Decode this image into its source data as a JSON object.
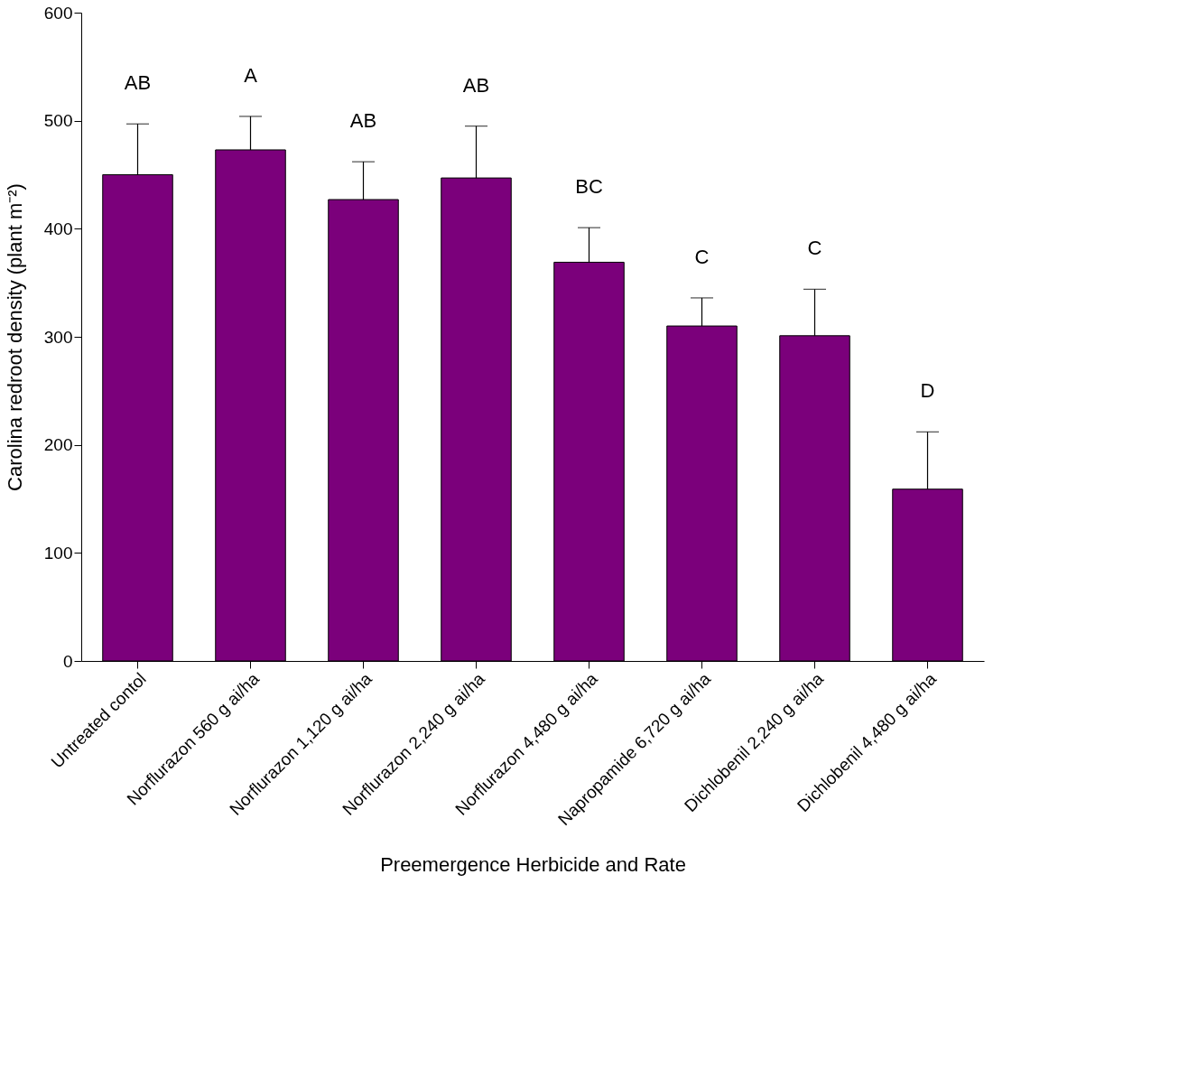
{
  "chart_data": {
    "type": "bar",
    "xlabel": "Preemergence Herbicide and Rate",
    "ylabel": "Carolina redroot density (plant m⁻²)",
    "categories": [
      "Untreated contol",
      "Norflurazon 560 g ai/ha",
      "Norflurazon 1,120 g ai/ha",
      "Norflurazon 2,240 g ai/ha",
      "Norflurazon 4,480 g ai/ha",
      "Napropamide 6,720 g ai/ha",
      "Dichlobenil 2,240 g ai/ha",
      "Dichlobenil 4,480 g ai/ha"
    ],
    "values": [
      450,
      473,
      427,
      447,
      369,
      310,
      301,
      159
    ],
    "errors": [
      [
        450,
        497
      ],
      [
        473,
        504
      ],
      [
        427,
        462
      ],
      [
        447,
        495
      ],
      [
        369,
        401
      ],
      [
        310,
        336
      ],
      [
        301,
        344
      ],
      [
        159,
        212
      ]
    ],
    "color": "#7b007b",
    "ylim": [
      0,
      600
    ],
    "yticks": [
      0,
      100,
      200,
      300,
      400,
      500,
      600
    ],
    "grid": false,
    "annotations": [
      "AB",
      "A",
      "AB",
      "AB",
      "BC",
      "C",
      "C",
      "D"
    ]
  }
}
